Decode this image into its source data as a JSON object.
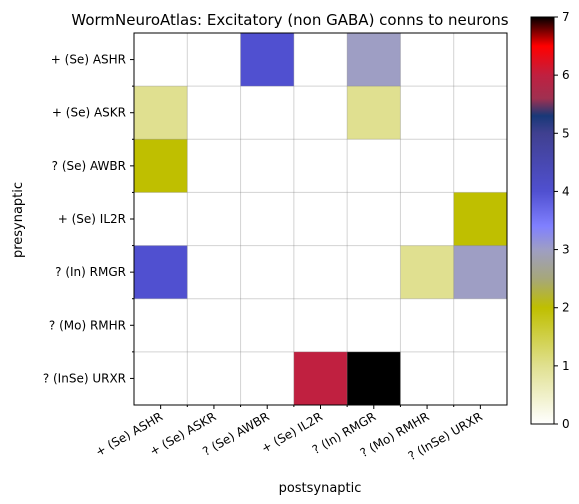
{
  "chart_data": {
    "type": "heatmap",
    "title": "WormNeuroAtlas: Excitatory (non GABA) conns to neurons",
    "xlabel": "postsynaptic",
    "ylabel": "presynaptic",
    "x_categories": [
      "+ (Se) ASHR",
      "+ (Se) ASKR",
      "? (Se) AWBR",
      "+ (Se) IL2R",
      "? (In) RMGR",
      "? (Mo) RMHR",
      "? (InSe) URXR"
    ],
    "y_categories": [
      "+ (Se) ASHR",
      "+ (Se) ASKR",
      "? (Se) AWBR",
      "+ (Se) IL2R",
      "? (In) RMGR",
      "? (Mo) RMHR",
      "? (InSe) URXR"
    ],
    "values": [
      [
        0,
        0,
        4,
        0,
        3,
        0,
        0
      ],
      [
        1,
        0,
        0,
        0,
        1,
        0,
        0
      ],
      [
        2,
        0,
        0,
        0,
        0,
        0,
        0
      ],
      [
        0,
        0,
        0,
        0,
        0,
        0,
        2
      ],
      [
        4,
        0,
        0,
        0,
        0,
        1,
        3
      ],
      [
        0,
        0,
        0,
        0,
        0,
        0,
        0
      ],
      [
        0,
        0,
        0,
        6,
        7,
        0,
        0
      ]
    ],
    "colorbar": {
      "min": 0,
      "max": 7,
      "ticks": [
        "0",
        "1",
        "2",
        "3",
        "4",
        "5",
        "6",
        "7"
      ],
      "colormap": "gist_stern_r-like",
      "stops": [
        {
          "v": 0.0,
          "c": "#ffffff"
        },
        {
          "v": 1.0,
          "c": "#e0e090"
        },
        {
          "v": 2.0,
          "c": "#bfbf00"
        },
        {
          "v": 2.5,
          "c": "#a6a77a"
        },
        {
          "v": 3.0,
          "c": "#9e9ec4"
        },
        {
          "v": 3.4,
          "c": "#8080ff"
        },
        {
          "v": 4.0,
          "c": "#5050d0"
        },
        {
          "v": 5.0,
          "c": "#404090"
        },
        {
          "v": 5.3,
          "c": "#183878"
        },
        {
          "v": 5.6,
          "c": "#a03050"
        },
        {
          "v": 6.0,
          "c": "#c02040"
        },
        {
          "v": 6.5,
          "c": "#ff0000"
        },
        {
          "v": 7.0,
          "c": "#000000"
        }
      ]
    },
    "grid": true
  }
}
